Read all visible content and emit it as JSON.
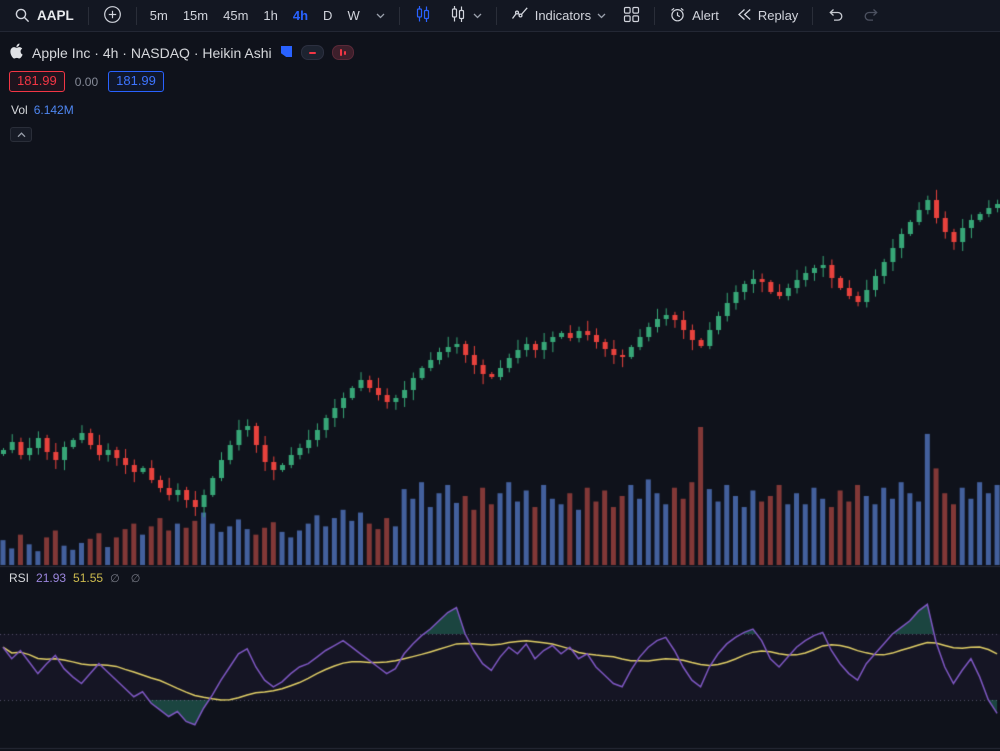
{
  "toolbar": {
    "symbol": "AAPL",
    "timeframes": [
      "5m",
      "15m",
      "45m",
      "1h",
      "4h",
      "D",
      "W"
    ],
    "active_timeframe": "4h",
    "indicators_label": "Indicators",
    "alert_label": "Alert",
    "replay_label": "Replay"
  },
  "legend": {
    "title": "Apple Inc · 4h · NASDAQ · Heikin Ashi",
    "bid": "181.99",
    "change": "0.00",
    "ask": "181.99",
    "vol_label": "Vol",
    "vol_value": "6.142M"
  },
  "rsi_legend": {
    "label": "RSI",
    "value": "21.93",
    "ma_value": "51.55",
    "empty_markers": "∅ ∅"
  },
  "colors": {
    "toolbar_bg": "#131722",
    "chart_bg": "#0f121b",
    "divider": "#272b38",
    "up": "#37a677",
    "down": "#e8423d",
    "vol_up": "rgba(76,110,180,0.85)",
    "vol_down": "rgba(150,64,60,0.85)",
    "rsi_line": "#7e57c2",
    "rsi_ma": "#e0ce66",
    "rsi_band_line": "rgba(148,138,178,0.5)",
    "rsi_band_fill": "rgba(126,87,194,0.06)",
    "rsi_overshoot": "rgba(38,112,94,0.55)",
    "accent": "#2962ff",
    "red": "#f23645"
  },
  "chart_data": [
    {
      "type": "candlestick",
      "title": "Apple Inc 4h Heikin Ashi",
      "ylim": [
        171.5,
        183.5
      ],
      "series": [
        {
          "name": "close",
          "values": [
            174.65,
            174.89,
            174.5,
            174.71,
            175.01,
            174.59,
            174.35,
            174.74,
            174.95,
            175.16,
            174.8,
            174.5,
            174.65,
            174.41,
            174.2,
            173.99,
            174.11,
            173.75,
            173.51,
            173.3,
            173.45,
            173.15,
            172.94,
            173.3,
            173.81,
            174.35,
            174.8,
            175.25,
            175.37,
            174.8,
            174.29,
            174.05,
            174.2,
            174.5,
            174.71,
            174.95,
            175.25,
            175.61,
            175.91,
            176.21,
            176.51,
            176.75,
            176.51,
            176.3,
            176.09,
            176.21,
            176.45,
            176.81,
            177.11,
            177.35,
            177.59,
            177.74,
            177.83,
            177.5,
            177.2,
            176.93,
            176.84,
            177.11,
            177.41,
            177.65,
            177.83,
            177.65,
            177.89,
            178.04,
            178.16,
            178.01,
            178.22,
            178.1,
            177.89,
            177.68,
            177.5,
            177.44,
            177.74,
            178.04,
            178.34,
            178.58,
            178.7,
            178.55,
            178.25,
            177.95,
            177.77,
            178.25,
            178.67,
            179.06,
            179.39,
            179.63,
            179.78,
            179.69,
            179.39,
            179.27,
            179.51,
            179.75,
            179.96,
            180.11,
            180.2,
            179.81,
            179.51,
            179.27,
            179.09,
            179.45,
            179.87,
            180.29,
            180.71,
            181.13,
            181.49,
            181.85,
            182.15,
            181.61,
            181.19,
            180.89,
            181.31,
            181.55,
            181.73,
            181.91,
            182.03
          ]
        }
      ]
    },
    {
      "type": "bar",
      "name": "Volume",
      "values": [
        18,
        12,
        22,
        15,
        10,
        20,
        25,
        14,
        11,
        16,
        19,
        23,
        13,
        20,
        26,
        30,
        22,
        28,
        34,
        25,
        30,
        27,
        32,
        38,
        30,
        24,
        28,
        33,
        26,
        22,
        27,
        31,
        24,
        20,
        25,
        30,
        36,
        28,
        34,
        40,
        32,
        38,
        30,
        26,
        34,
        28,
        55,
        48,
        60,
        42,
        52,
        58,
        45,
        50,
        40,
        56,
        44,
        52,
        60,
        46,
        54,
        42,
        58,
        48,
        44,
        52,
        40,
        56,
        46,
        54,
        42,
        50,
        58,
        48,
        62,
        52,
        44,
        56,
        48,
        60,
        100,
        55,
        46,
        58,
        50,
        42,
        54,
        46,
        50,
        58,
        44,
        52,
        44,
        56,
        48,
        42,
        54,
        46,
        58,
        50,
        44,
        56,
        48,
        60,
        52,
        46,
        95,
        70,
        52,
        44,
        56,
        48,
        60,
        52,
        58
      ]
    },
    {
      "type": "line",
      "name": "RSI 14",
      "bands": [
        70,
        30
      ],
      "last_value": 21.93,
      "ma_last_value": 51.55,
      "values": [
        62,
        55,
        60,
        53,
        46,
        52,
        57,
        49,
        44,
        40,
        46,
        52,
        47,
        42,
        37,
        32,
        35,
        28,
        24,
        20,
        23,
        17,
        15,
        25,
        33,
        42,
        50,
        58,
        61,
        50,
        42,
        38,
        41,
        46,
        50,
        52,
        56,
        60,
        63,
        66,
        62,
        58,
        54,
        50,
        46,
        49,
        58,
        64,
        69,
        73,
        78,
        83,
        86,
        70,
        60,
        52,
        48,
        56,
        62,
        58,
        64,
        55,
        60,
        63,
        58,
        62,
        55,
        58,
        50,
        45,
        40,
        38,
        48,
        56,
        62,
        66,
        68,
        60,
        50,
        42,
        38,
        50,
        58,
        64,
        68,
        71,
        73,
        66,
        55,
        50,
        56,
        62,
        66,
        69,
        71,
        60,
        52,
        46,
        42,
        52,
        58,
        64,
        70,
        74,
        78,
        84,
        88,
        65,
        50,
        40,
        48,
        55,
        44,
        30,
        21.93
      ]
    }
  ]
}
